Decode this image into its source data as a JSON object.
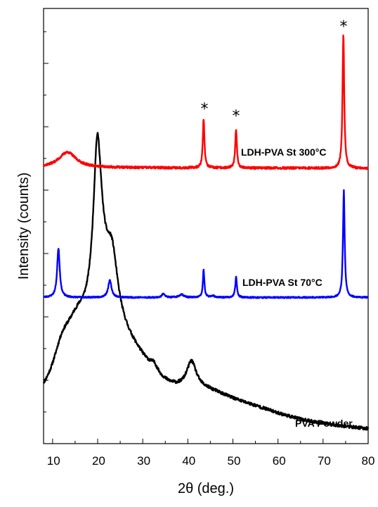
{
  "chart_data": {
    "type": "line",
    "title": "",
    "xlabel": "2θ (deg.)",
    "ylabel": "Intensity (counts)",
    "xlim": [
      8,
      80
    ],
    "x_ticks": [
      "10",
      "20",
      "30",
      "40",
      "50",
      "60",
      "70",
      "80"
    ],
    "y_ticks_labeled": false,
    "grid": false,
    "legend": "none (inline series labels)",
    "peak_marker_symbol": "*",
    "peak_markers_at_x": [
      43.5,
      50.7,
      74.5
    ],
    "series": [
      {
        "name": "PVA Powder",
        "color": "#000000",
        "baseline": 0,
        "peaks": [
          {
            "x": 12.0,
            "y": 40,
            "w": 2.5
          },
          {
            "x": 15.5,
            "y": 85,
            "w": 4.0
          },
          {
            "x": 19.9,
            "y": 175,
            "w": 1.0
          },
          {
            "x": 20.4,
            "y": 110,
            "w": 2.2
          },
          {
            "x": 23.2,
            "y": 78,
            "w": 1.5
          },
          {
            "x": 23.0,
            "y": 60,
            "w": 4.5
          },
          {
            "x": 28.0,
            "y": 55,
            "w": 7.0
          },
          {
            "x": 32.5,
            "y": 10,
            "w": 1.0
          },
          {
            "x": 40.8,
            "y": 38,
            "w": 1.3
          },
          {
            "x": 44.0,
            "y": 30,
            "w": 9.0
          },
          {
            "x": 55.0,
            "y": 12,
            "w": 10.0
          }
        ],
        "background": {
          "start": 30,
          "end": 8
        }
      },
      {
        "name": "LDH-PVA St 70°C",
        "color": "#0000ff",
        "baseline": 0,
        "peaks": [
          {
            "x": 11.3,
            "y": 140,
            "w": 0.35
          },
          {
            "x": 22.7,
            "y": 48,
            "w": 0.45
          },
          {
            "x": 34.6,
            "y": 12,
            "w": 0.35
          },
          {
            "x": 38.6,
            "y": 9,
            "w": 0.6
          },
          {
            "x": 43.5,
            "y": 78,
            "w": 0.2
          },
          {
            "x": 45.5,
            "y": 5,
            "w": 0.5
          },
          {
            "x": 50.7,
            "y": 58,
            "w": 0.22
          },
          {
            "x": 74.6,
            "y": 305,
            "w": 0.22
          }
        ],
        "background": {
          "start": 3,
          "end": 3
        }
      },
      {
        "name": "LDH-PVA St 300°C",
        "color": "#ff0000",
        "baseline": 0,
        "peaks": [
          {
            "x": 13.3,
            "y": 22,
            "w": 2.3
          },
          {
            "x": 43.5,
            "y": 70,
            "w": 0.22
          },
          {
            "x": 50.7,
            "y": 55,
            "w": 0.22
          },
          {
            "x": 74.5,
            "y": 190,
            "w": 0.22
          }
        ],
        "background": {
          "start": 3,
          "end": 2
        }
      }
    ]
  },
  "labels": {
    "xlabel": "2θ (deg.)",
    "ylabel": "Intensity (counts)",
    "series_pva": "PVA Powder",
    "series_70": "LDH-PVA St 70°C",
    "series_300": "LDH-PVA St 300°C",
    "star_1": "*",
    "star_2": "*",
    "star_3": "*",
    "tick_10": "10",
    "tick_20": "20",
    "tick_30": "30",
    "tick_40": "40",
    "tick_50": "50",
    "tick_60": "60",
    "tick_70": "70",
    "tick_80": "80"
  }
}
